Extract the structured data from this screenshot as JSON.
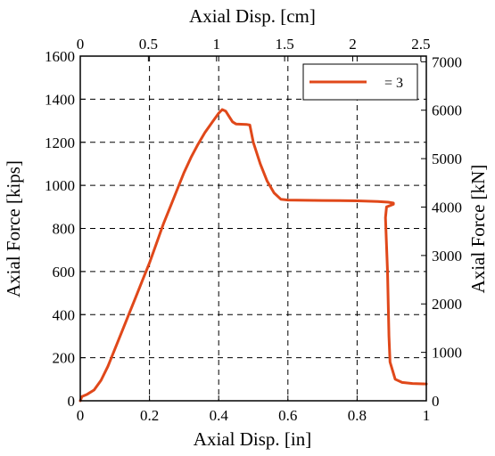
{
  "chart_data": {
    "type": "line",
    "xlabel": "Axial Disp. [in]",
    "xlabel_top": "Axial Disp. [cm]",
    "ylabel": "Axial Force [kips]",
    "ylabel_right": "Axial Force [kN]",
    "xlim": [
      0,
      1
    ],
    "ylim": [
      0,
      1600
    ],
    "xlim_top": [
      0,
      2.54
    ],
    "ylim_right": [
      0,
      7117
    ],
    "x_ticks": [
      "0",
      "0.2",
      "0.4",
      "0.6",
      "0.8",
      "1"
    ],
    "y_ticks": [
      "0",
      "200",
      "400",
      "600",
      "800",
      "1000",
      "1200",
      "1400",
      "1600"
    ],
    "x_ticks_top": [
      "0",
      "0.5",
      "1",
      "1.5",
      "2",
      "2.5"
    ],
    "y_ticks_right": [
      "0",
      "1000",
      "2000",
      "3000",
      "4000",
      "5000",
      "6000",
      "7000"
    ],
    "grid": true,
    "legend_position": "top-right",
    "series": [
      {
        "name": "= 3",
        "color": "#e0481a",
        "points": [
          [
            0.0,
            0
          ],
          [
            0.005,
            20
          ],
          [
            0.02,
            30
          ],
          [
            0.04,
            50
          ],
          [
            0.06,
            95
          ],
          [
            0.08,
            160
          ],
          [
            0.1,
            240
          ],
          [
            0.12,
            320
          ],
          [
            0.14,
            400
          ],
          [
            0.16,
            480
          ],
          [
            0.18,
            560
          ],
          [
            0.2,
            640
          ],
          [
            0.22,
            730
          ],
          [
            0.24,
            820
          ],
          [
            0.26,
            900
          ],
          [
            0.28,
            980
          ],
          [
            0.3,
            1060
          ],
          [
            0.32,
            1130
          ],
          [
            0.34,
            1190
          ],
          [
            0.36,
            1245
          ],
          [
            0.38,
            1290
          ],
          [
            0.4,
            1335
          ],
          [
            0.41,
            1352
          ],
          [
            0.42,
            1345
          ],
          [
            0.44,
            1295
          ],
          [
            0.45,
            1285
          ],
          [
            0.48,
            1283
          ],
          [
            0.49,
            1280
          ],
          [
            0.5,
            1200
          ],
          [
            0.52,
            1100
          ],
          [
            0.54,
            1020
          ],
          [
            0.56,
            965
          ],
          [
            0.58,
            935
          ],
          [
            0.6,
            932
          ],
          [
            0.7,
            930
          ],
          [
            0.8,
            928
          ],
          [
            0.86,
            925
          ],
          [
            0.89,
            922
          ],
          [
            0.905,
            918
          ],
          [
            0.905,
            912
          ],
          [
            0.885,
            900
          ],
          [
            0.882,
            850
          ],
          [
            0.885,
            720
          ],
          [
            0.888,
            600
          ],
          [
            0.89,
            450
          ],
          [
            0.892,
            300
          ],
          [
            0.895,
            180
          ],
          [
            0.91,
            100
          ],
          [
            0.93,
            85
          ],
          [
            0.96,
            80
          ],
          [
            1.0,
            78
          ]
        ]
      }
    ]
  }
}
